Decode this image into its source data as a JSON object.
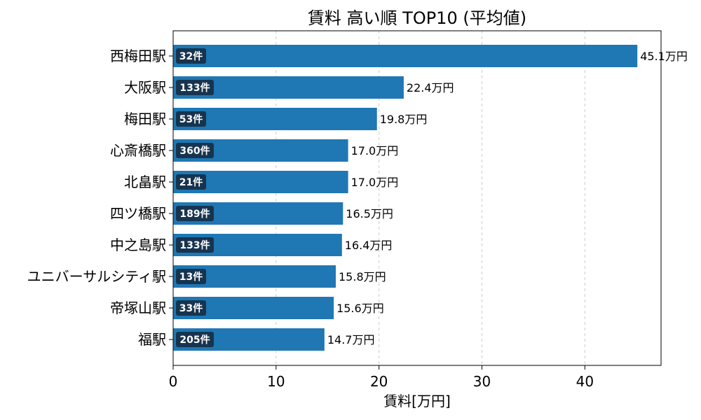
{
  "chart_data": {
    "type": "bar",
    "orientation": "horizontal",
    "title": "賃料 高い順 TOP10 (平均値)",
    "xlabel": "賃料[万円]",
    "ylabel": "",
    "xlim": [
      0,
      47.4
    ],
    "xticks": [
      0,
      10,
      20,
      30,
      40
    ],
    "grid": "x-only, dashed",
    "bar_color": "#1f77b4",
    "badge_color": "#17344f",
    "categories": [
      "西梅田駅",
      "大阪駅",
      "梅田駅",
      "心斎橋駅",
      "北畠駅",
      "四ツ橋駅",
      "中之島駅",
      "ユニバーサルシティ駅",
      "帝塚山駅",
      "福駅"
    ],
    "values": [
      45.1,
      22.4,
      19.8,
      17.0,
      17.0,
      16.5,
      16.4,
      15.8,
      15.6,
      14.7
    ],
    "value_labels": [
      "45.1万円",
      "22.4万円",
      "19.8万円",
      "17.0万円",
      "17.0万円",
      "16.5万円",
      "16.4万円",
      "15.8万円",
      "15.6万円",
      "14.7万円"
    ],
    "counts": [
      "32件",
      "133件",
      "53件",
      "360件",
      "21件",
      "189件",
      "133件",
      "13件",
      "33件",
      "205件"
    ]
  }
}
